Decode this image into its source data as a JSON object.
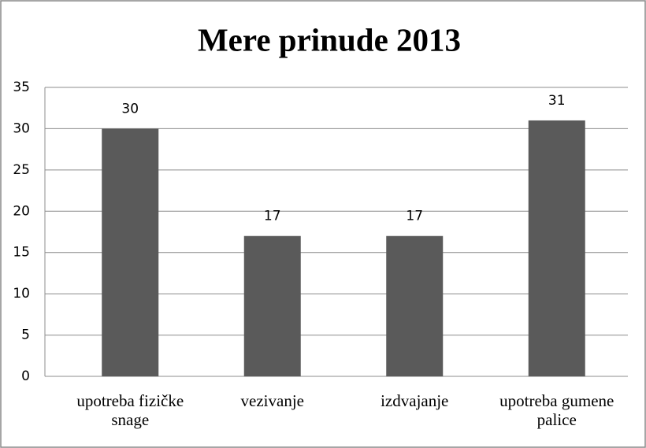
{
  "chart_data": {
    "type": "bar",
    "title": "Mere prinude 2013",
    "categories": [
      "upotreba fizičke snage",
      "vezivanje",
      "izdvajanje",
      "upotreba gumene palice"
    ],
    "values": [
      30,
      17,
      17,
      31
    ],
    "color": "#5a5a5a",
    "ylim": [
      0,
      35
    ],
    "yticks": [
      0,
      5,
      10,
      15,
      20,
      25,
      30,
      35
    ],
    "grid": true
  }
}
